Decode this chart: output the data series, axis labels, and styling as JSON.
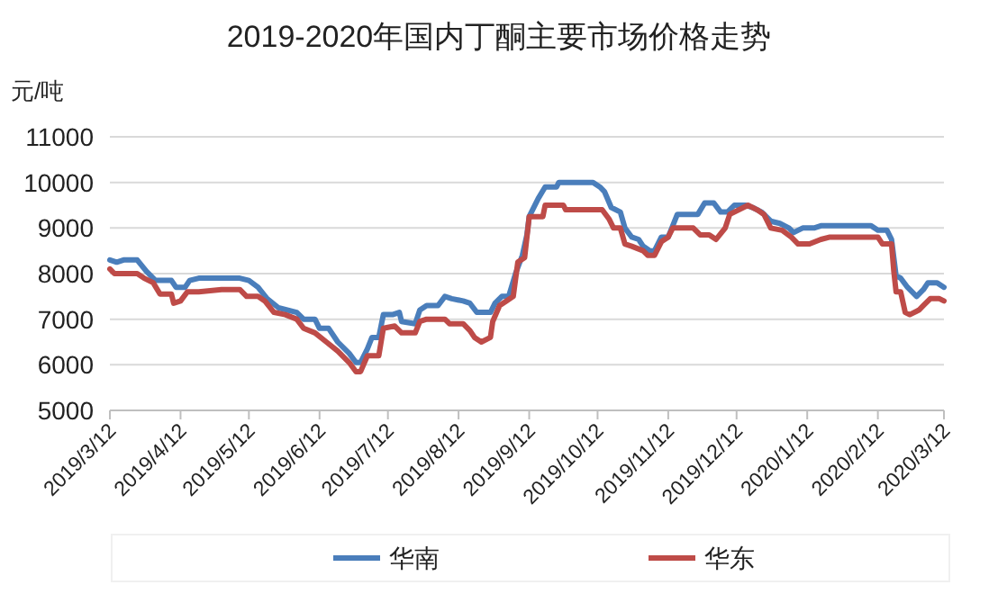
{
  "chart_data": {
    "type": "line",
    "title": "2019-2020年国内丁酮主要市场价格走势",
    "ylabel": "元/吨",
    "xlim": [
      "2019-03-12",
      "2020-03-12"
    ],
    "xticks": [
      {
        "value": "2019-03-12",
        "label": "2019/3/12"
      },
      {
        "value": "2019-04-12",
        "label": "2019/4/12"
      },
      {
        "value": "2019-05-12",
        "label": "2019/5/12"
      },
      {
        "value": "2019-06-12",
        "label": "2019/6/12"
      },
      {
        "value": "2019-07-12",
        "label": "2019/7/12"
      },
      {
        "value": "2019-08-12",
        "label": "2019/8/12"
      },
      {
        "value": "2019-09-12",
        "label": "2019/9/12"
      },
      {
        "value": "2019-10-12",
        "label": "2019/10/12"
      },
      {
        "value": "2019-11-12",
        "label": "2019/11/12"
      },
      {
        "value": "2019-12-12",
        "label": "2019/12/12"
      },
      {
        "value": "2020-01-12",
        "label": "2020/1/12"
      },
      {
        "value": "2020-02-12",
        "label": "2020/2/12"
      },
      {
        "value": "2020-03-12",
        "label": "2020/3/12"
      }
    ],
    "ylim": [
      5000,
      11000
    ],
    "yticks": [
      5000,
      6000,
      7000,
      8000,
      9000,
      10000,
      11000
    ],
    "grid": "y",
    "legend": "bottom",
    "marker": "none",
    "line_style": "solid",
    "series": [
      {
        "name": "华南",
        "color": "#4a7ebb",
        "x": [
          "2019-03-12",
          "2019-03-15",
          "2019-03-18",
          "2019-03-24",
          "2019-03-28",
          "2019-04-01",
          "2019-04-08",
          "2019-04-10",
          "2019-04-14",
          "2019-04-16",
          "2019-04-20",
          "2019-04-30",
          "2019-05-08",
          "2019-05-12",
          "2019-05-16",
          "2019-05-20",
          "2019-05-25",
          "2019-06-02",
          "2019-06-05",
          "2019-06-10",
          "2019-06-12",
          "2019-06-16",
          "2019-06-20",
          "2019-06-25",
          "2019-06-28",
          "2019-06-30",
          "2019-07-03",
          "2019-07-05",
          "2019-07-08",
          "2019-07-10",
          "2019-07-14",
          "2019-07-17",
          "2019-07-18",
          "2019-07-24",
          "2019-07-26",
          "2019-07-29",
          "2019-08-03",
          "2019-08-06",
          "2019-08-09",
          "2019-08-14",
          "2019-08-17",
          "2019-08-20",
          "2019-08-26",
          "2019-08-28",
          "2019-08-31",
          "2019-09-03",
          "2019-09-06",
          "2019-09-09",
          "2019-09-11",
          "2019-09-12",
          "2019-09-16",
          "2019-09-19",
          "2019-09-24",
          "2019-09-25",
          "2019-10-10",
          "2019-10-13",
          "2019-10-15",
          "2019-10-18",
          "2019-10-22",
          "2019-10-24",
          "2019-10-27",
          "2019-10-30",
          "2019-11-01",
          "2019-11-04",
          "2019-11-06",
          "2019-11-09",
          "2019-11-12",
          "2019-11-16",
          "2019-11-25",
          "2019-11-28",
          "2019-12-02",
          "2019-12-05",
          "2019-12-08",
          "2019-12-11",
          "2019-12-16",
          "2019-12-19",
          "2019-12-23",
          "2019-12-27",
          "2019-12-31",
          "2020-01-04",
          "2020-01-06",
          "2020-01-10",
          "2020-01-15",
          "2020-01-18",
          "2020-02-09",
          "2020-02-12",
          "2020-02-16",
          "2020-02-18",
          "2020-02-20",
          "2020-02-22",
          "2020-02-25",
          "2020-02-29",
          "2020-03-03",
          "2020-03-05",
          "2020-03-09",
          "2020-03-12"
        ],
        "values": [
          8300,
          8250,
          8300,
          8300,
          8050,
          7850,
          7850,
          7700,
          7700,
          7850,
          7900,
          7900,
          7900,
          7850,
          7700,
          7450,
          7250,
          7150,
          7000,
          7000,
          6800,
          6800,
          6500,
          6250,
          6050,
          6050,
          6350,
          6600,
          6600,
          7100,
          7100,
          7150,
          6950,
          6900,
          7200,
          7300,
          7300,
          7500,
          7450,
          7400,
          7350,
          7150,
          7150,
          7350,
          7500,
          7500,
          8000,
          8400,
          8850,
          9250,
          9650,
          9900,
          9900,
          10000,
          10000,
          9900,
          9800,
          9450,
          9350,
          9000,
          8800,
          8750,
          8600,
          8500,
          8500,
          8800,
          8800,
          9300,
          9300,
          9550,
          9550,
          9350,
          9350,
          9500,
          9500,
          9450,
          9350,
          9150,
          9100,
          9000,
          8900,
          9000,
          9000,
          9050,
          9050,
          8950,
          8950,
          8750,
          7950,
          7900,
          7700,
          7500,
          7650,
          7800,
          7800,
          7700
        ]
      },
      {
        "name": "华东",
        "color": "#be4b48",
        "x": [
          "2019-03-12",
          "2019-03-14",
          "2019-03-24",
          "2019-03-27",
          "2019-03-31",
          "2019-04-03",
          "2019-04-08",
          "2019-04-09",
          "2019-04-12",
          "2019-04-15",
          "2019-04-20",
          "2019-04-30",
          "2019-05-08",
          "2019-05-11",
          "2019-05-16",
          "2019-05-19",
          "2019-05-23",
          "2019-05-28",
          "2019-06-02",
          "2019-06-05",
          "2019-06-10",
          "2019-06-15",
          "2019-06-20",
          "2019-06-25",
          "2019-06-28",
          "2019-06-30",
          "2019-07-03",
          "2019-07-08",
          "2019-07-10",
          "2019-07-15",
          "2019-07-18",
          "2019-07-24",
          "2019-07-26",
          "2019-07-29",
          "2019-08-06",
          "2019-08-08",
          "2019-08-14",
          "2019-08-17",
          "2019-08-19",
          "2019-08-22",
          "2019-08-26",
          "2019-08-27",
          "2019-08-30",
          "2019-09-02",
          "2019-09-05",
          "2019-09-07",
          "2019-09-10",
          "2019-09-12",
          "2019-09-18",
          "2019-09-19",
          "2019-09-27",
          "2019-09-28",
          "2019-10-14",
          "2019-10-17",
          "2019-10-19",
          "2019-10-22",
          "2019-10-24",
          "2019-10-27",
          "2019-11-01",
          "2019-11-03",
          "2019-11-06",
          "2019-11-09",
          "2019-11-12",
          "2019-11-14",
          "2019-11-23",
          "2019-11-26",
          "2019-11-30",
          "2019-12-03",
          "2019-12-07",
          "2019-12-09",
          "2019-12-13",
          "2019-12-17",
          "2019-12-21",
          "2019-12-24",
          "2019-12-27",
          "2020-01-01",
          "2020-01-05",
          "2020-01-08",
          "2020-01-13",
          "2020-01-18",
          "2020-01-22",
          "2020-02-12",
          "2020-02-14",
          "2020-02-18",
          "2020-02-19",
          "2020-02-20",
          "2020-02-22",
          "2020-02-24",
          "2020-02-26",
          "2020-03-01",
          "2020-03-03",
          "2020-03-06",
          "2020-03-10",
          "2020-03-12"
        ],
        "values": [
          8100,
          8000,
          8000,
          7900,
          7800,
          7550,
          7550,
          7350,
          7400,
          7600,
          7600,
          7650,
          7650,
          7500,
          7500,
          7400,
          7150,
          7100,
          7000,
          6800,
          6700,
          6500,
          6300,
          6050,
          5850,
          5850,
          6200,
          6200,
          6800,
          6850,
          6700,
          6700,
          6950,
          7000,
          7000,
          6900,
          6900,
          6750,
          6600,
          6500,
          6600,
          6950,
          7300,
          7400,
          7500,
          8250,
          8350,
          9250,
          9250,
          9500,
          9500,
          9400,
          9400,
          9200,
          9000,
          9000,
          8650,
          8600,
          8500,
          8400,
          8400,
          8700,
          8800,
          9000,
          9000,
          8850,
          8850,
          8750,
          9000,
          9300,
          9400,
          9500,
          9400,
          9300,
          9000,
          8950,
          8800,
          8650,
          8650,
          8750,
          8800,
          8800,
          8650,
          8650,
          8050,
          7600,
          7600,
          7150,
          7100,
          7200,
          7300,
          7450,
          7450,
          7400
        ]
      }
    ]
  }
}
